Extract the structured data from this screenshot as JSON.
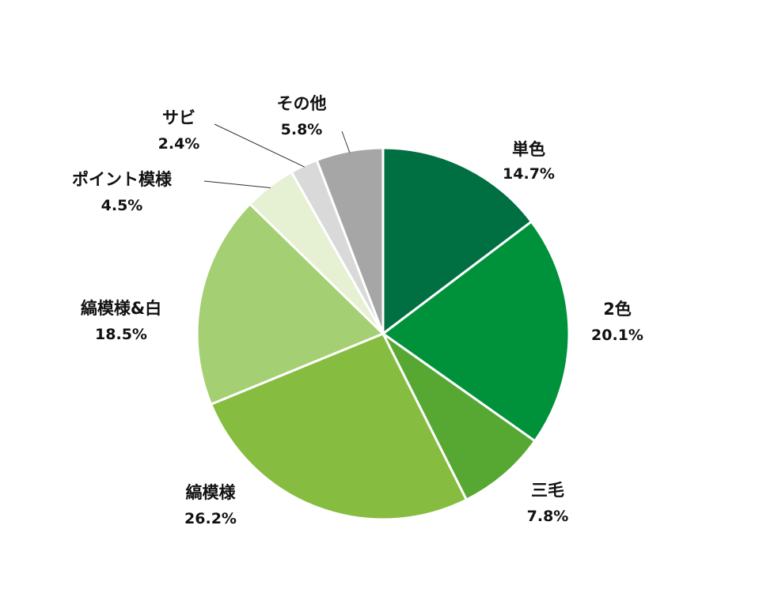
{
  "chart_data": {
    "type": "pie",
    "title": "",
    "start_angle_deg": 0,
    "direction": "clockwise",
    "categories": [
      "単色",
      "2色",
      "三毛",
      "縞模様",
      "縞模様&白",
      "ポイント模様",
      "サビ",
      "その他"
    ],
    "values": [
      14.7,
      20.1,
      7.8,
      26.2,
      18.5,
      4.5,
      2.4,
      5.8
    ],
    "value_labels": [
      "14.7%",
      "20.1%",
      "7.8%",
      "26.2%",
      "18.5%",
      "4.5%",
      "2.4%",
      "5.8%"
    ],
    "colors": [
      "#006F42",
      "#00923A",
      "#56A833",
      "#86BD40",
      "#A4CF72",
      "#E6F0D3",
      "#D9D9D9",
      "#A6A6A6"
    ],
    "slice_border_color": "#FFFFFF",
    "legend": "none",
    "labels_outside": true
  }
}
